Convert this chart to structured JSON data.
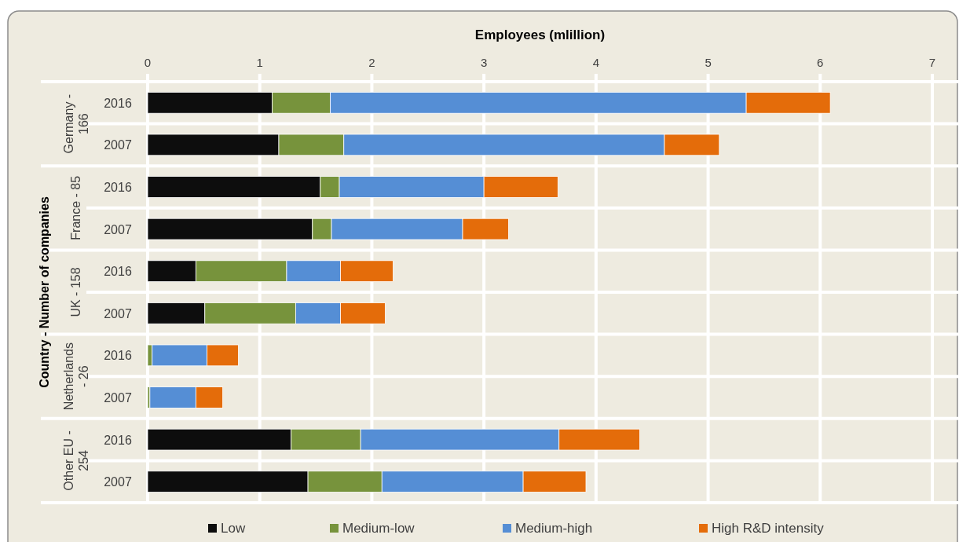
{
  "chart_data": {
    "type": "bar",
    "orientation": "horizontal",
    "stacked": true,
    "xlabel": "Employees (mlillion)",
    "ylabel": "Country - Number of companies",
    "categories": [
      "2016",
      "2007",
      "2016",
      "2007",
      "2016",
      "2007",
      "2016",
      "2007",
      "2016",
      "2007"
    ],
    "annotations": [
      "Germany - 166",
      "France - 85",
      "UK - 158",
      "Netherlands - 26",
      "Other EU - 254"
    ],
    "series": [
      {
        "name": "Low",
        "color": "#0d0d0d",
        "values": [
          1.11,
          1.17,
          1.54,
          1.47,
          0.43,
          0.51,
          0,
          0,
          1.28,
          1.43
        ]
      },
      {
        "name": "Medium-low",
        "color": "#77933c",
        "values": [
          0.52,
          0.58,
          0.17,
          0.17,
          0.81,
          0.81,
          0.04,
          0.02,
          0.62,
          0.66
        ]
      },
      {
        "name": "Medium-high",
        "color": "#558ed5",
        "values": [
          3.71,
          2.86,
          1.29,
          1.17,
          0.48,
          0.4,
          0.49,
          0.41,
          1.77,
          1.26
        ]
      },
      {
        "name": "High R&D intensity",
        "color": "#e46c0a",
        "values": [
          0.75,
          0.49,
          0.66,
          0.41,
          0.47,
          0.4,
          0.28,
          0.24,
          0.72,
          0.56
        ]
      }
    ],
    "xlim": [
      0,
      7
    ],
    "xticks": [
      0,
      1,
      2,
      3,
      4,
      5,
      6,
      7
    ],
    "grid": true,
    "legend": "bottom"
  }
}
